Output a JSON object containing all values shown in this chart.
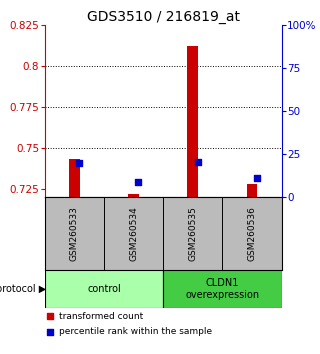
{
  "title": "GDS3510 / 216819_at",
  "samples": [
    "GSM260533",
    "GSM260534",
    "GSM260535",
    "GSM260536"
  ],
  "red_values": [
    0.743,
    0.722,
    0.812,
    0.728
  ],
  "blue_values": [
    20.0,
    9.0,
    20.5,
    11.0
  ],
  "ylim_left": [
    0.72,
    0.825
  ],
  "ylim_right": [
    0,
    100
  ],
  "yticks_left": [
    0.725,
    0.75,
    0.775,
    0.8,
    0.825
  ],
  "yticks_right": [
    0,
    25,
    50,
    75,
    100
  ],
  "red_color": "#cc0000",
  "blue_color": "#0000cc",
  "bg_color": "#bbbbbb",
  "plot_bg": "#ffffff",
  "left_axis_color": "#cc0000",
  "right_axis_color": "#0000cc",
  "title_fontsize": 10,
  "tick_fontsize": 7.5,
  "sample_fontsize": 6.5,
  "proto_fontsize": 7,
  "legend_fontsize": 6.5,
  "base_value": 0.72,
  "control_color": "#aaffaa",
  "overexp_color": "#44cc44"
}
